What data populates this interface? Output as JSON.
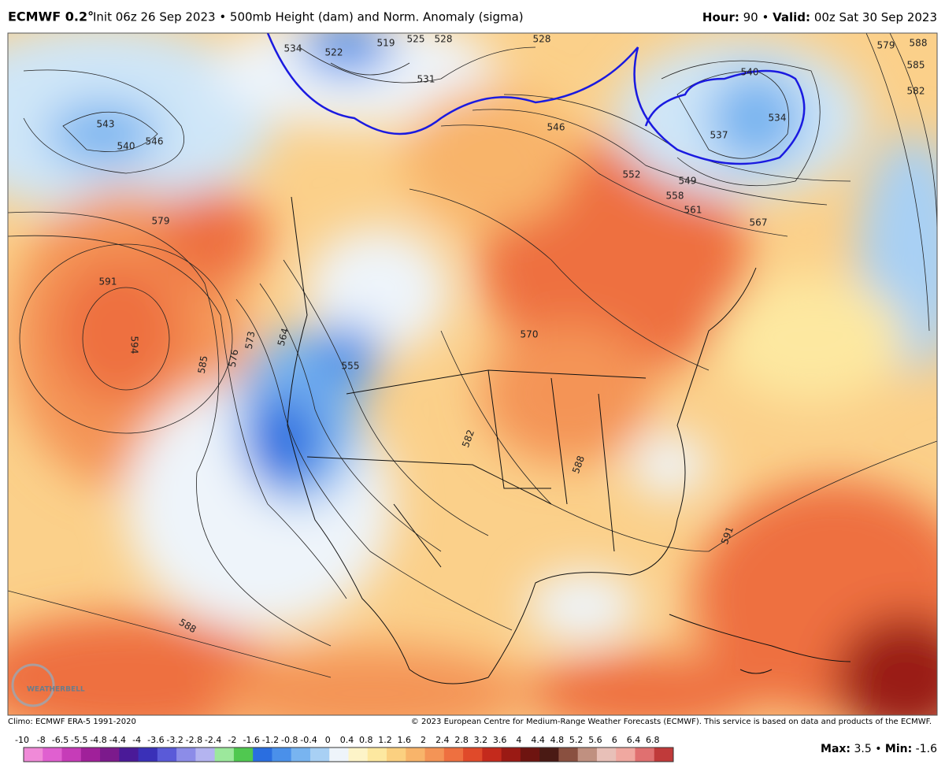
{
  "header": {
    "model": "ECMWF 0.2°",
    "description": "Init 06z 26 Sep 2023 • 500mb Height (dam) and Norm. Anomaly (sigma)",
    "hour_label": "Hour:",
    "hour_value": "90 •",
    "valid_label": "Valid:",
    "valid_value": "00z Sat 30 Sep 2023"
  },
  "contour_labels": [
    "534",
    "522",
    "519",
    "525",
    "528",
    "531",
    "528",
    "540",
    "534",
    "537",
    "579",
    "588",
    "585",
    "582",
    "543",
    "540",
    "546",
    "546",
    "552",
    "549",
    "558",
    "561",
    "567",
    "579",
    "591",
    "594",
    "570",
    "585",
    "576",
    "573",
    "564",
    "555",
    "582",
    "588",
    "591",
    "588"
  ],
  "logo": "WEATHERBELL",
  "footer": {
    "climo": "Climo: ECMWF ERA-5 1991-2020",
    "copyright": "© 2023 European Centre for Medium-Range Weather Forecasts (ECMWF). This service is based on data and products of the ECMWF."
  },
  "colorbar": {
    "labels": [
      "-10",
      "-8",
      "-6.5",
      "-5.5",
      "-4.8",
      "-4.4",
      "-4",
      "-3.6",
      "-3.2",
      "-2.8",
      "-2.4",
      "-2",
      "-1.6",
      "-1.2",
      "-0.8",
      "-0.4",
      "0",
      "0.4",
      "0.8",
      "1.2",
      "1.6",
      "2",
      "2.4",
      "2.8",
      "3.2",
      "3.6",
      "4",
      "4.4",
      "4.8",
      "5.2",
      "5.6",
      "6",
      "6.4",
      "6.8"
    ],
    "colors": [
      "#f08ad8",
      "#e060d0",
      "#c63cb8",
      "#a0209a",
      "#7c1a8c",
      "#4a1a98",
      "#3a30b8",
      "#5a5ad8",
      "#8c8ce8",
      "#b4b4f0",
      "#9ce89c",
      "#50c850",
      "#2a6ee0",
      "#4a90ea",
      "#78b4f0",
      "#a8d0f4",
      "#eef4fa",
      "#fdf4c8",
      "#fde8a0",
      "#fbd080",
      "#f8b46a",
      "#f49456",
      "#ee7040",
      "#e04a2a",
      "#c42a1c",
      "#9a1a14",
      "#6e1410",
      "#4a1a14",
      "#8a5040",
      "#c09080",
      "#e8c0b8",
      "#f0a8a0",
      "#e07070",
      "#c03a3a"
    ]
  },
  "stats": {
    "max_label": "Max:",
    "max_value": "3.5 •",
    "min_label": "Min:",
    "min_value": "-1.6"
  }
}
